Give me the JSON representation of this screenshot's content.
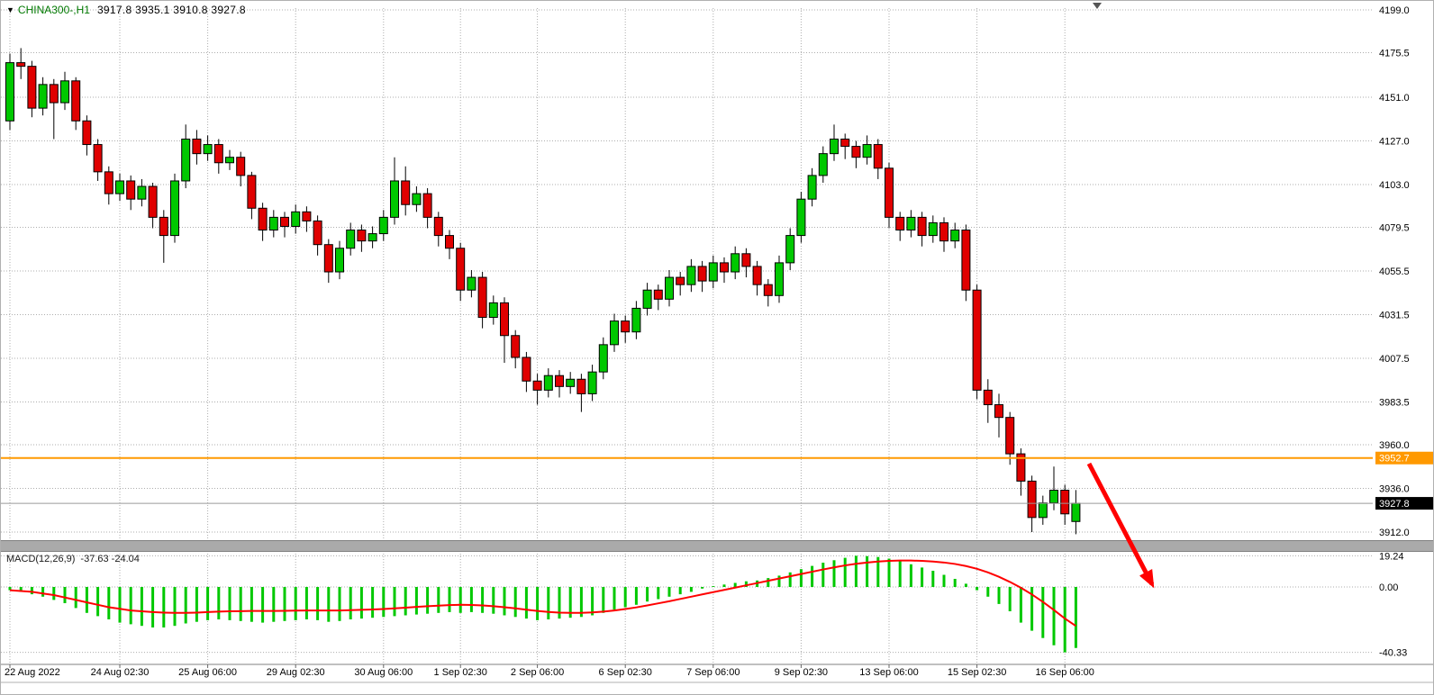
{
  "header": {
    "dropdown_icon": "▼",
    "symbol": "CHINA300-,H1",
    "ohlc": "3917.8 3935.1 3910.8 3927.8"
  },
  "macd_panel": {
    "label": "MACD(12,26,9)",
    "values": "-37.63 -24.04"
  },
  "colors": {
    "up": "#00C800",
    "down": "#E00000",
    "outline": "#000000",
    "signal": "#FF0000",
    "hline": "#FF9900",
    "grid": "#adadad",
    "arrow": "#FF0000",
    "current_tag_bg": "#000000",
    "current_tag_text": "#FFFFFF"
  },
  "annotations": {
    "hline": {
      "price": 3952.7,
      "label": "3952.7"
    },
    "current_price": {
      "price": 3927.8,
      "label": "3927.8"
    },
    "arrow": {
      "from": [
        1208,
        514
      ],
      "to": [
        1278,
        648
      ]
    }
  },
  "chart_data": [
    {
      "type": "candlestick",
      "title": "CHINA300- H1",
      "xlabel": "",
      "ylabel": "",
      "y_axis_range": [
        3912.0,
        4199.0
      ],
      "grid": true,
      "last_ohlc": {
        "open": 3917.8,
        "high": 3935.1,
        "low": 3910.8,
        "close": 3927.8
      },
      "y_tick_labels": [
        "4199.0",
        "4175.5",
        "4151.0",
        "4127.0",
        "4103.0",
        "4079.5",
        "4055.5",
        "4031.5",
        "4007.5",
        "3983.5",
        "3960.0",
        "3936.0",
        "3912.0"
      ],
      "x_tick_labels": [
        "22 Aug 2022",
        "24 Aug 02:30",
        "25 Aug 06:00",
        "29 Aug 02:30",
        "30 Aug 06:00",
        "1 Sep 02:30",
        "2 Sep 06:00",
        "6 Sep 02:30",
        "7 Sep 06:00",
        "9 Sep 02:30",
        "13 Sep 06:00",
        "15 Sep 02:30",
        "16 Sep 06:00"
      ],
      "x_tick_candle_index": [
        0,
        10,
        18,
        26,
        34,
        41,
        48,
        56,
        64,
        72,
        80,
        88,
        96
      ],
      "candles": [
        [
          4138,
          4175,
          4133,
          4170
        ],
        [
          4170,
          4178,
          4161,
          4168
        ],
        [
          4168,
          4171,
          4140,
          4145
        ],
        [
          4145,
          4162,
          4141,
          4158
        ],
        [
          4158,
          4161,
          4128,
          4148
        ],
        [
          4148,
          4165,
          4144,
          4160
        ],
        [
          4160,
          4162,
          4133,
          4138
        ],
        [
          4138,
          4141,
          4119,
          4125
        ],
        [
          4125,
          4128,
          4105,
          4110
        ],
        [
          4110,
          4113,
          4092,
          4098
        ],
        [
          4098,
          4109,
          4094,
          4105
        ],
        [
          4105,
          4108,
          4089,
          4095
        ],
        [
          4095,
          4106,
          4091,
          4102
        ],
        [
          4102,
          4104,
          4079,
          4085
        ],
        [
          4085,
          4089,
          4060,
          4075
        ],
        [
          4075,
          4109,
          4071,
          4105
        ],
        [
          4105,
          4136,
          4101,
          4128
        ],
        [
          4128,
          4133,
          4114,
          4120
        ],
        [
          4120,
          4130,
          4116,
          4125
        ],
        [
          4125,
          4128,
          4109,
          4115
        ],
        [
          4115,
          4122,
          4111,
          4118
        ],
        [
          4118,
          4121,
          4102,
          4108
        ],
        [
          4108,
          4110,
          4084,
          4090
        ],
        [
          4090,
          4093,
          4072,
          4078
        ],
        [
          4078,
          4089,
          4074,
          4085
        ],
        [
          4085,
          4088,
          4074,
          4080
        ],
        [
          4080,
          4092,
          4076,
          4088
        ],
        [
          4088,
          4091,
          4077,
          4083
        ],
        [
          4083,
          4086,
          4064,
          4070
        ],
        [
          4070,
          4073,
          4049,
          4055
        ],
        [
          4055,
          4072,
          4051,
          4068
        ],
        [
          4068,
          4082,
          4064,
          4078
        ],
        [
          4078,
          4081,
          4066,
          4072
        ],
        [
          4072,
          4080,
          4068,
          4076
        ],
        [
          4076,
          4089,
          4072,
          4085
        ],
        [
          4085,
          4118,
          4081,
          4105
        ],
        [
          4105,
          4113,
          4086,
          4092
        ],
        [
          4092,
          4102,
          4088,
          4098
        ],
        [
          4098,
          4101,
          4079,
          4085
        ],
        [
          4085,
          4088,
          4069,
          4075
        ],
        [
          4075,
          4078,
          4062,
          4068
        ],
        [
          4068,
          4071,
          4039,
          4045
        ],
        [
          4045,
          4056,
          4041,
          4052
        ],
        [
          4052,
          4055,
          4024,
          4030
        ],
        [
          4030,
          4042,
          4026,
          4038
        ],
        [
          4038,
          4041,
          4005,
          4020
        ],
        [
          4020,
          4023,
          4002,
          4008
        ],
        [
          4008,
          4011,
          3989,
          3995
        ],
        [
          3995,
          3999,
          3982,
          3990
        ],
        [
          3990,
          4002,
          3986,
          3998
        ],
        [
          3998,
          4001,
          3986,
          3992
        ],
        [
          3992,
          4000,
          3988,
          3996
        ],
        [
          3996,
          3999,
          3978,
          3988
        ],
        [
          3988,
          4004,
          3984,
          4000
        ],
        [
          4000,
          4019,
          3996,
          4015
        ],
        [
          4015,
          4032,
          4011,
          4028
        ],
        [
          4028,
          4031,
          4016,
          4022
        ],
        [
          4022,
          4039,
          4018,
          4035
        ],
        [
          4035,
          4049,
          4031,
          4045
        ],
        [
          4045,
          4048,
          4034,
          4040
        ],
        [
          4040,
          4056,
          4036,
          4052
        ],
        [
          4052,
          4055,
          4042,
          4048
        ],
        [
          4048,
          4062,
          4044,
          4058
        ],
        [
          4058,
          4061,
          4044,
          4050
        ],
        [
          4050,
          4064,
          4046,
          4060
        ],
        [
          4060,
          4063,
          4049,
          4055
        ],
        [
          4055,
          4069,
          4051,
          4065
        ],
        [
          4065,
          4068,
          4052,
          4058
        ],
        [
          4058,
          4061,
          4042,
          4048
        ],
        [
          4048,
          4051,
          4036,
          4042
        ],
        [
          4042,
          4064,
          4038,
          4060
        ],
        [
          4060,
          4079,
          4056,
          4075
        ],
        [
          4075,
          4099,
          4071,
          4095
        ],
        [
          4095,
          4112,
          4091,
          4108
        ],
        [
          4108,
          4124,
          4104,
          4120
        ],
        [
          4120,
          4136,
          4116,
          4128
        ],
        [
          4128,
          4131,
          4117,
          4124
        ],
        [
          4124,
          4127,
          4112,
          4118
        ],
        [
          4118,
          4130,
          4114,
          4125
        ],
        [
          4125,
          4128,
          4106,
          4112
        ],
        [
          4112,
          4115,
          4079,
          4085
        ],
        [
          4085,
          4088,
          4072,
          4078
        ],
        [
          4078,
          4089,
          4074,
          4085
        ],
        [
          4085,
          4088,
          4069,
          4075
        ],
        [
          4075,
          4086,
          4071,
          4082
        ],
        [
          4082,
          4085,
          4066,
          4072
        ],
        [
          4072,
          4082,
          4068,
          4078
        ],
        [
          4078,
          4081,
          4039,
          4045
        ],
        [
          4045,
          4048,
          3985,
          3990
        ],
        [
          3990,
          3996,
          3972,
          3982
        ],
        [
          3982,
          3988,
          3964,
          3975
        ],
        [
          3975,
          3978,
          3949,
          3955
        ],
        [
          3955,
          3958,
          3932,
          3940
        ],
        [
          3940,
          3943,
          3912,
          3920
        ],
        [
          3920,
          3932,
          3916,
          3928
        ],
        [
          3928,
          3948,
          3924,
          3935
        ],
        [
          3935,
          3938,
          3916,
          3922
        ],
        [
          3917.8,
          3935.1,
          3910.8,
          3927.8
        ]
      ]
    },
    {
      "type": "bar",
      "title": "MACD(12,26,9)",
      "xlabel": "",
      "ylabel": "",
      "y_axis_range": [
        -40.33,
        19.24
      ],
      "y_tick_labels": [
        "19.24",
        "0.00",
        "-40.33"
      ],
      "last_values": {
        "macd": -37.63,
        "signal": -24.04
      },
      "histogram": [
        -2,
        -3,
        -4.5,
        -6,
        -8,
        -10,
        -13,
        -16,
        -18,
        -20,
        -22,
        -23,
        -24,
        -25,
        -25,
        -24,
        -22.5,
        -21.5,
        -20.5,
        -20,
        -20.5,
        -21,
        -21.5,
        -22,
        -21.5,
        -21,
        -20.5,
        -20,
        -20.5,
        -21.5,
        -21,
        -20,
        -19.5,
        -19,
        -18.5,
        -18,
        -17.5,
        -17,
        -16.5,
        -16,
        -15.5,
        -16,
        -15.5,
        -16,
        -16.5,
        -17.5,
        -18.5,
        -19.5,
        -20.5,
        -20,
        -19.5,
        -19,
        -18.5,
        -17.5,
        -16,
        -14,
        -12.5,
        -11,
        -9,
        -7.5,
        -6,
        -4.5,
        -3,
        -1,
        0.5,
        1.5,
        2.5,
        3.5,
        4,
        5.5,
        7,
        9,
        11,
        13,
        15,
        16.5,
        18,
        19.24,
        19,
        18.5,
        17.5,
        16,
        14,
        12,
        10,
        7.5,
        5,
        2,
        -2,
        -6,
        -10.5,
        -15,
        -22,
        -27,
        -31.5,
        -36,
        -40.33,
        -37.63
      ],
      "signal": [
        -2,
        -2.5,
        -3,
        -4,
        -5,
        -6.5,
        -8,
        -9.5,
        -11,
        -12.5,
        -13.5,
        -14.5,
        -15,
        -15.5,
        -15.8,
        -16,
        -16,
        -15.8,
        -15.5,
        -15.2,
        -15,
        -14.9,
        -14.8,
        -14.8,
        -14.8,
        -14.7,
        -14.6,
        -14.5,
        -14.5,
        -14.5,
        -14.5,
        -14.3,
        -14.1,
        -13.9,
        -13.6,
        -13.2,
        -12.8,
        -12.3,
        -11.9,
        -11.5,
        -11.2,
        -11,
        -11.1,
        -11.4,
        -11.9,
        -12.5,
        -13.2,
        -14,
        -14.8,
        -15.4,
        -15.8,
        -16,
        -16,
        -15.7,
        -15.2,
        -14.5,
        -13.6,
        -12.6,
        -11.4,
        -10.1,
        -8.8,
        -7.4,
        -6,
        -4.6,
        -3.2,
        -1.8,
        -0.4,
        1,
        2.4,
        3.8,
        5.2,
        6.6,
        8,
        9.4,
        10.8,
        12.1,
        13.3,
        14.3,
        15.1,
        15.7,
        16.1,
        16.3,
        16.3,
        16.1,
        15.7,
        15.1,
        14.2,
        12.9,
        11.2,
        9,
        6.3,
        3.1,
        -0.5,
        -4.6,
        -9.2,
        -14.2,
        -19.5,
        -24.04
      ]
    }
  ]
}
